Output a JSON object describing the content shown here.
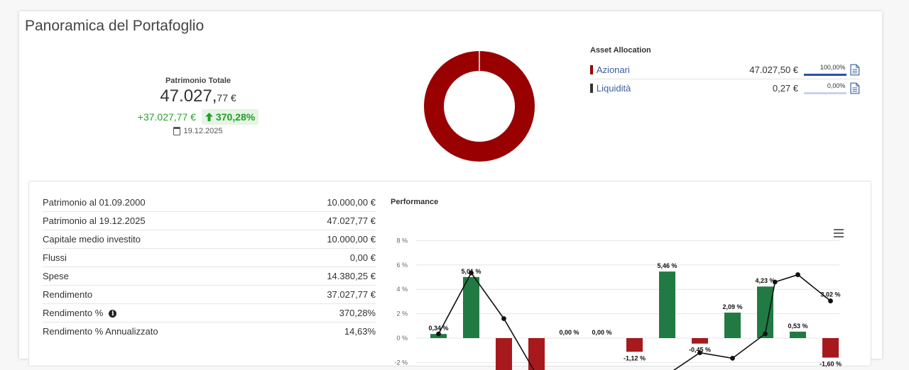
{
  "panel": {
    "title": "Panoramica del Portafoglio"
  },
  "summary": {
    "label": "Patrimonio Totale",
    "total_int": "47.027,",
    "total_dec": "77 €",
    "change_abs": "+37.027,77 €",
    "change_pct": "370,28%",
    "date": "19.12.2025"
  },
  "donut": {
    "segments": [
      {
        "name": "Azionari",
        "pct": 100.0,
        "color": "#990000"
      },
      {
        "name": "Liquidità",
        "pct": 0.0,
        "color": "#333333"
      }
    ]
  },
  "allocation": {
    "title": "Asset Allocation",
    "rows": [
      {
        "name": "Azionari",
        "amount": "47.027,50 €",
        "share": "100,00%",
        "share_value": 1.0,
        "color": "#990000"
      },
      {
        "name": "Liquidità",
        "amount": "0,27 €",
        "share": "0,00%",
        "share_value": 0.0,
        "color": "#333333"
      }
    ]
  },
  "stats": [
    {
      "label": "Patrimonio al 01.09.2000",
      "value": "10.000,00 €"
    },
    {
      "label": "Patrimonio al 19.12.2025",
      "value": "47.027,77 €"
    },
    {
      "label": "Capitale medio investito",
      "value": "10.000,00 €"
    },
    {
      "label": "Flussi",
      "value": "0,00 €"
    },
    {
      "label": "Spese",
      "value": "14.380,25 €"
    },
    {
      "label": "Rendimento",
      "value": "37.027,77 €"
    },
    {
      "label": "Rendimento %",
      "value": "370,28%",
      "info": true
    },
    {
      "label": "Rendimento % Annualizzato",
      "value": "14,63%"
    }
  ],
  "performance": {
    "title": "Performance"
  },
  "chart_data": {
    "type": "bar",
    "title": "Performance",
    "y_ticks": [
      "8 %",
      "6 %",
      "4 %",
      "2 %",
      "0 %",
      "-2 %"
    ],
    "ylim": [
      -2,
      8
    ],
    "positive_color": "#217a43",
    "negative_color": "#a8191e",
    "bars": [
      {
        "value": 0.34,
        "label": "0,34 %"
      },
      {
        "value": 5.01,
        "label": "5,01 %"
      },
      {
        "value": -3.0,
        "label": ""
      },
      {
        "value": -3.0,
        "label": ""
      },
      {
        "value": 0.0,
        "label": "0,00 %"
      },
      {
        "value": 0.0,
        "label": "0,00 %"
      },
      {
        "value": -1.12,
        "label": "-1,12 %"
      },
      {
        "value": 5.46,
        "label": "5,46 %"
      },
      {
        "value": -0.45,
        "label": "-0,45 %"
      },
      {
        "value": 2.09,
        "label": "2,09 %"
      },
      {
        "value": 4.23,
        "label": "4,23 %"
      },
      {
        "value": 0.53,
        "label": "0,53 %"
      },
      {
        "value": -1.6,
        "label": "-1,60 %"
      }
    ],
    "line": [
      {
        "bar": 0,
        "value": 0.34
      },
      {
        "bar": 1,
        "value": 5.35
      },
      {
        "bar": 2,
        "value": 1.6
      },
      {
        "bar": 3,
        "value": -3.0
      },
      {
        "bar": 7,
        "value": -3.0
      },
      {
        "bar": 8,
        "value": -1.2
      },
      {
        "bar": 9,
        "value": -1.65
      },
      {
        "bar": 10,
        "value": 0.35
      },
      {
        "bar": 10.3,
        "value": 4.6
      },
      {
        "bar": 11,
        "value": 5.2
      },
      {
        "bar": 12,
        "value": 3.05
      }
    ],
    "line_label": {
      "bar": 12,
      "text": "3,02 %"
    }
  }
}
